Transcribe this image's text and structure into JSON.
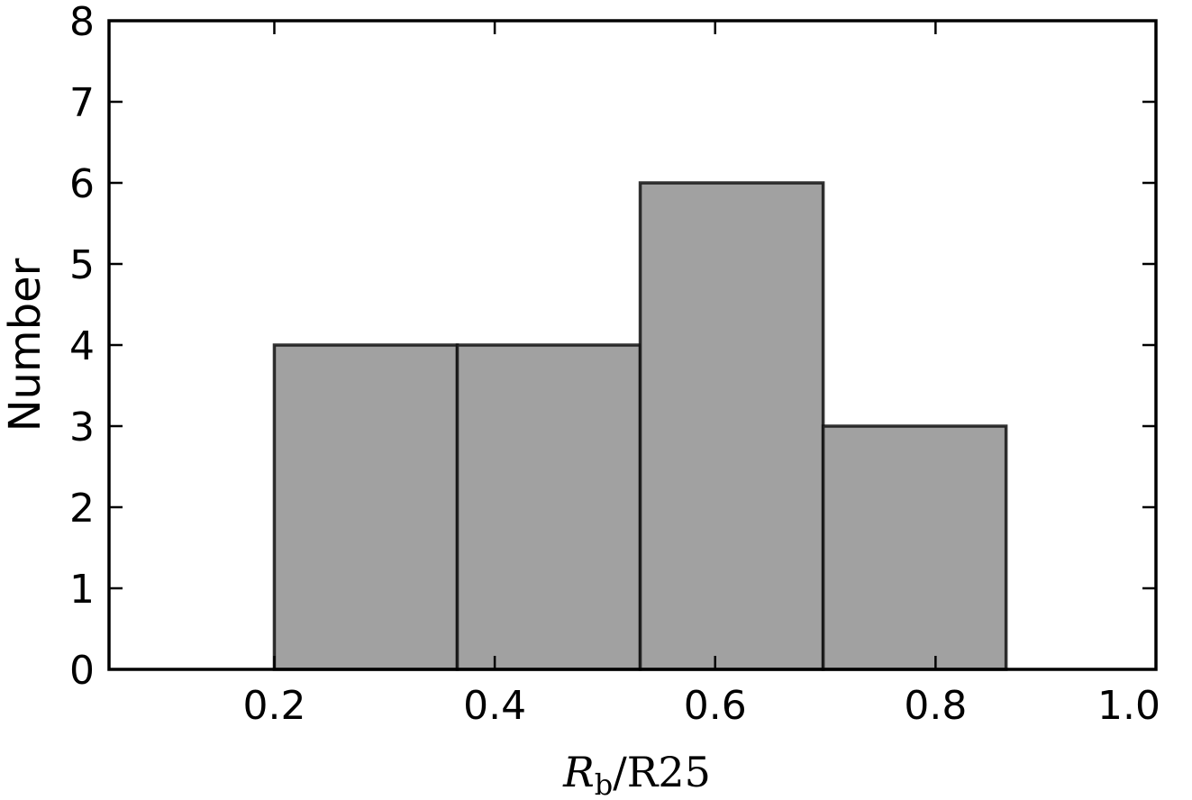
{
  "chart_data": {
    "type": "bar",
    "subtype": "histogram",
    "bins": [
      {
        "x0": 0.2,
        "x1": 0.366,
        "count": 4
      },
      {
        "x0": 0.366,
        "x1": 0.532,
        "count": 4
      },
      {
        "x0": 0.532,
        "x1": 0.698,
        "count": 6
      },
      {
        "x0": 0.698,
        "x1": 0.864,
        "count": 3
      }
    ],
    "xlabel": "R_b/R25",
    "xlabel_parts": {
      "main": "R",
      "sub": "b",
      "rest": "/R25"
    },
    "ylabel": "Number",
    "xlim": [
      0.05,
      1.0
    ],
    "ylim": [
      0,
      8
    ],
    "xticks": [
      0.2,
      0.4,
      0.6,
      0.8,
      1.0
    ],
    "xtick_labels": [
      "0.2",
      "0.4",
      "0.6",
      "0.8",
      "1.0"
    ],
    "yticks": [
      0,
      1,
      2,
      3,
      4,
      5,
      6,
      7,
      8
    ],
    "ytick_labels": [
      "0",
      "1",
      "2",
      "3",
      "4",
      "5",
      "6",
      "7",
      "8"
    ],
    "grid": false,
    "colors": {
      "bar_fill": "#a1a1a1",
      "bar_edge": "#111111",
      "axis": "#000000"
    }
  }
}
